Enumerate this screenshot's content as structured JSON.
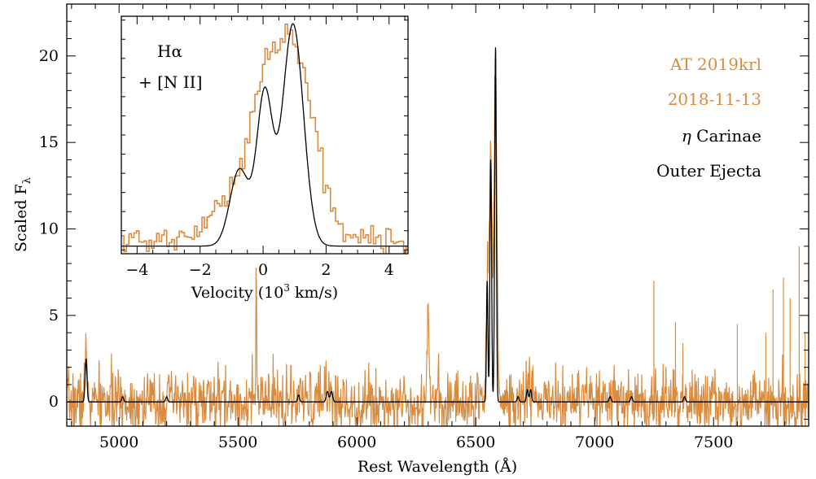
{
  "chart_data": [
    {
      "type": "line",
      "panel": "main",
      "xlabel": "Rest Wavelength (Å)",
      "ylabel": "Scaled F",
      "ylabel_sub": "λ",
      "xlim": [
        4780,
        7900
      ],
      "ylim": [
        -1.4,
        23.0
      ],
      "xticks": [
        5000,
        5500,
        6000,
        6500,
        7000,
        7500
      ],
      "yticks": [
        0,
        5,
        10,
        15,
        20
      ],
      "x_minor_step": 100,
      "y_minor_step": 1,
      "series": [
        {
          "name": "AT 2019krl",
          "color": "#D98C3F",
          "style": "noisy-spectrum",
          "noise_sigma": 0.9,
          "continuum": 0.0,
          "emission_lines": [
            {
              "center": 4861,
              "peak": 2.5,
              "width": 6
            },
            {
              "center": 5577,
              "peak": 8.8,
              "width": 1.5
            },
            {
              "center": 5876,
              "peak": 1.0,
              "width": 10
            },
            {
              "center": 6300,
              "peak": 4.5,
              "width": 6
            },
            {
              "center": 6548,
              "peak": 7.0,
              "width": 5
            },
            {
              "center": 6563,
              "peak": 14.5,
              "width": 6
            },
            {
              "center": 6583,
              "peak": 19.8,
              "width": 6
            },
            {
              "center": 6720,
              "peak": 1.0,
              "width": 12
            }
          ],
          "sky_spikes": [
            {
              "x": 7249,
              "y": 7.0
            },
            {
              "x": 7340,
              "y": 4.6
            },
            {
              "x": 7371,
              "y": 3.4
            },
            {
              "x": 7600,
              "y": 4.5
            },
            {
              "x": 7720,
              "y": 4.0
            },
            {
              "x": 7750,
              "y": 6.5
            },
            {
              "x": 7794,
              "y": 7.2
            },
            {
              "x": 7822,
              "y": 6.0
            },
            {
              "x": 7860,
              "y": 9.0
            },
            {
              "x": 7885,
              "y": 4.0
            },
            {
              "x": 7900,
              "y": 7.0
            }
          ]
        },
        {
          "name": "η Carinae Outer Ejecta",
          "color": "#000000",
          "style": "model",
          "continuum": 0.0,
          "emission_lines": [
            {
              "center": 4861,
              "peak": 2.5,
              "width": 4
            },
            {
              "center": 5015,
              "peak": 0.3,
              "width": 4
            },
            {
              "center": 5200,
              "peak": 0.3,
              "width": 4
            },
            {
              "center": 5755,
              "peak": 0.4,
              "width": 4
            },
            {
              "center": 5876,
              "peak": 0.6,
              "width": 5
            },
            {
              "center": 5893,
              "peak": 0.6,
              "width": 5
            },
            {
              "center": 6548,
              "peak": 7.0,
              "width": 3
            },
            {
              "center": 6563,
              "peak": 14.0,
              "width": 3.5
            },
            {
              "center": 6583,
              "peak": 20.5,
              "width": 3.5
            },
            {
              "center": 6678,
              "peak": 0.3,
              "width": 4
            },
            {
              "center": 6717,
              "peak": 0.7,
              "width": 4
            },
            {
              "center": 6731,
              "peak": 0.7,
              "width": 4
            },
            {
              "center": 7065,
              "peak": 0.3,
              "width": 4
            },
            {
              "center": 7155,
              "peak": 0.3,
              "width": 4
            },
            {
              "center": 7378,
              "peak": 0.3,
              "width": 4
            }
          ]
        }
      ]
    },
    {
      "type": "line",
      "panel": "inset",
      "xlabel": "Velocity (10",
      "xlabel_sup": "3",
      "xlabel_tail": " km/s)",
      "xlim": [
        -4.5,
        4.6
      ],
      "ylim": [
        8.8,
        21.2
      ],
      "xticks": [
        -4,
        -2,
        0,
        2,
        4
      ],
      "x_minor_step": 0.5,
      "y_minor_step": 1,
      "series": [
        {
          "name": "AT 2019krl",
          "color": "#D98C3F",
          "style": "step",
          "baseline": 9.5,
          "noise_sigma": 0.35,
          "components": [
            {
              "center": -1.3,
              "amp": 1.8,
              "sigma": 0.45
            },
            {
              "center": -0.5,
              "amp": 2.5,
              "sigma": 0.4
            },
            {
              "center": 0.05,
              "amp": 5.5,
              "sigma": 0.38
            },
            {
              "center": 0.95,
              "amp": 10.5,
              "sigma": 0.55
            },
            {
              "center": 1.9,
              "amp": 1.5,
              "sigma": 0.35
            }
          ]
        },
        {
          "name": "η Carinae",
          "color": "#000000",
          "style": "model",
          "baseline": 9.2,
          "components": [
            {
              "center": -0.75,
              "amp": 4.0,
              "sigma": 0.3
            },
            {
              "center": 0.05,
              "amp": 7.9,
              "sigma": 0.25
            },
            {
              "center": 0.95,
              "amp": 11.6,
              "sigma": 0.33
            }
          ]
        }
      ]
    }
  ],
  "legend": {
    "object_name": "AT 2019krl",
    "date": "2018-11-13",
    "comparison_symbol": "η",
    "comparison_name": "Carinae",
    "comparison_region": "Outer Ejecta"
  },
  "inset_labels": {
    "line_1": "Hα",
    "line_2": "+ [N II]"
  },
  "colors": {
    "observed": "#D98C3F",
    "model": "#000000"
  }
}
